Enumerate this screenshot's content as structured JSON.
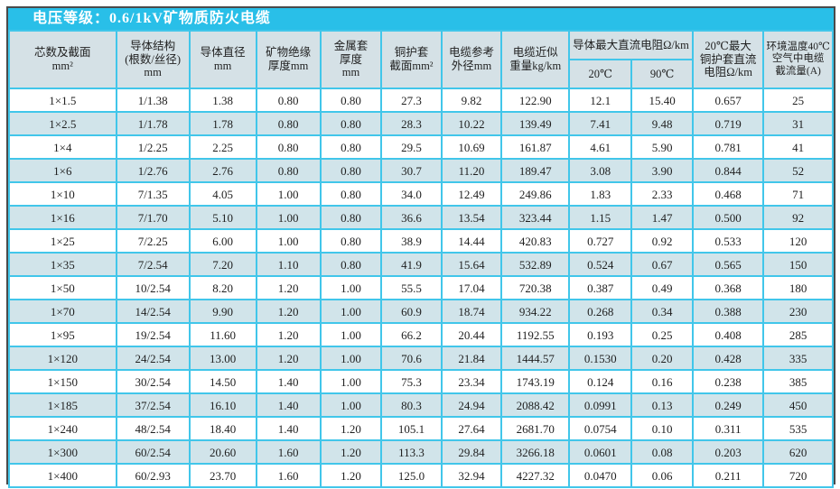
{
  "title": "电压等级：0.6/1kV矿物质防火电缆",
  "colors": {
    "title_bar": "#29bfe8",
    "header_bg": "#d5e1e6",
    "stripe_bg": "#d1e4ea",
    "row_bg": "#ffffff",
    "border": "#41c6ea",
    "outer_border": "#4a4a4a",
    "text": "#1f1f1f",
    "title_text": "#ffffff"
  },
  "table": {
    "columns": [
      {
        "label": "芯数及截面\nmm²"
      },
      {
        "label": "导体结构\n(根数/丝径)\nmm"
      },
      {
        "label": "导体直径\nmm"
      },
      {
        "label": "矿物绝缘\n厚度mm"
      },
      {
        "label": "金属套\n厚度\nmm"
      },
      {
        "label": "铜护套\n截面mm²"
      },
      {
        "label": "电缆参考\n外径mm"
      },
      {
        "label": "电缆近似\n重量kg/km"
      },
      {
        "label": "导体最大直流电阻Ω/km",
        "sub": [
          "20℃",
          "90℃"
        ]
      },
      {
        "label": "20℃最大\n铜护套直流\n电阻Ω/km"
      },
      {
        "label": "环境温度40℃\n空气中电缆\n截流量(A)"
      }
    ],
    "rows": [
      [
        "1×1.5",
        "1/1.38",
        "1.38",
        "0.80",
        "0.80",
        "27.3",
        "9.82",
        "122.90",
        "12.1",
        "15.40",
        "0.657",
        "25"
      ],
      [
        "1×2.5",
        "1/1.78",
        "1.78",
        "0.80",
        "0.80",
        "28.3",
        "10.22",
        "139.49",
        "7.41",
        "9.48",
        "0.719",
        "31"
      ],
      [
        "1×4",
        "1/2.25",
        "2.25",
        "0.80",
        "0.80",
        "29.5",
        "10.69",
        "161.87",
        "4.61",
        "5.90",
        "0.781",
        "41"
      ],
      [
        "1×6",
        "1/2.76",
        "2.76",
        "0.80",
        "0.80",
        "30.7",
        "11.20",
        "189.47",
        "3.08",
        "3.90",
        "0.844",
        "52"
      ],
      [
        "1×10",
        "7/1.35",
        "4.05",
        "1.00",
        "0.80",
        "34.0",
        "12.49",
        "249.86",
        "1.83",
        "2.33",
        "0.468",
        "71"
      ],
      [
        "1×16",
        "7/1.70",
        "5.10",
        "1.00",
        "0.80",
        "36.6",
        "13.54",
        "323.44",
        "1.15",
        "1.47",
        "0.500",
        "92"
      ],
      [
        "1×25",
        "7/2.25",
        "6.00",
        "1.00",
        "0.80",
        "38.9",
        "14.44",
        "420.83",
        "0.727",
        "0.92",
        "0.533",
        "120"
      ],
      [
        "1×35",
        "7/2.54",
        "7.20",
        "1.10",
        "0.80",
        "41.9",
        "15.64",
        "532.89",
        "0.524",
        "0.67",
        "0.565",
        "150"
      ],
      [
        "1×50",
        "10/2.54",
        "8.20",
        "1.20",
        "1.00",
        "55.5",
        "17.04",
        "720.38",
        "0.387",
        "0.49",
        "0.368",
        "180"
      ],
      [
        "1×70",
        "14/2.54",
        "9.90",
        "1.20",
        "1.00",
        "60.9",
        "18.74",
        "934.22",
        "0.268",
        "0.34",
        "0.388",
        "230"
      ],
      [
        "1×95",
        "19/2.54",
        "11.60",
        "1.20",
        "1.00",
        "66.2",
        "20.44",
        "1192.55",
        "0.193",
        "0.25",
        "0.408",
        "285"
      ],
      [
        "1×120",
        "24/2.54",
        "13.00",
        "1.20",
        "1.00",
        "70.6",
        "21.84",
        "1444.57",
        "0.1530",
        "0.20",
        "0.428",
        "335"
      ],
      [
        "1×150",
        "30/2.54",
        "14.50",
        "1.40",
        "1.00",
        "75.3",
        "23.34",
        "1743.19",
        "0.124",
        "0.16",
        "0.238",
        "385"
      ],
      [
        "1×185",
        "37/2.54",
        "16.10",
        "1.40",
        "1.00",
        "80.3",
        "24.94",
        "2088.42",
        "0.0991",
        "0.13",
        "0.249",
        "450"
      ],
      [
        "1×240",
        "48/2.54",
        "18.40",
        "1.40",
        "1.20",
        "105.1",
        "27.64",
        "2681.70",
        "0.0754",
        "0.10",
        "0.311",
        "535"
      ],
      [
        "1×300",
        "60/2.54",
        "20.60",
        "1.60",
        "1.20",
        "113.3",
        "29.84",
        "3266.18",
        "0.0601",
        "0.08",
        "0.203",
        "620"
      ],
      [
        "1×400",
        "60/2.93",
        "23.70",
        "1.60",
        "1.20",
        "125.0",
        "32.94",
        "4227.32",
        "0.0470",
        "0.06",
        "0.211",
        "720"
      ]
    ]
  }
}
